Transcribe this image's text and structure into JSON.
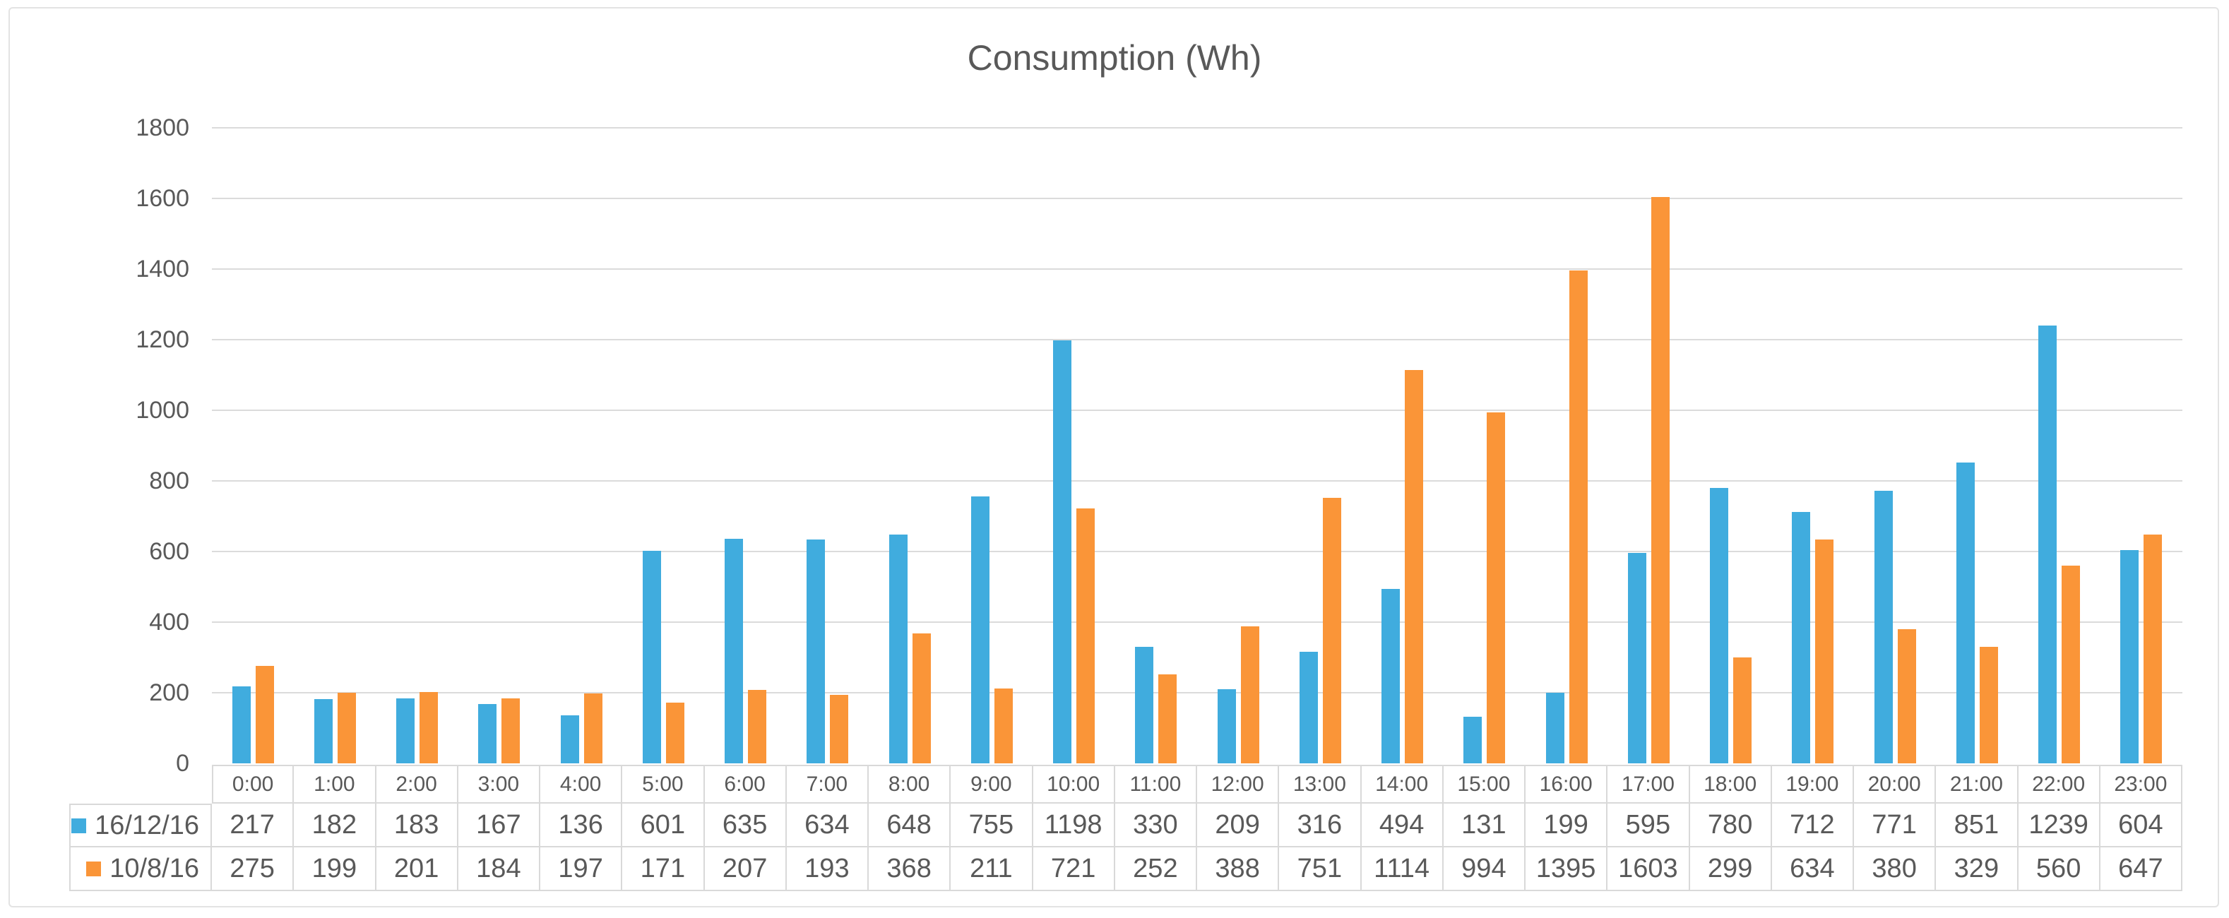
{
  "chart_data": {
    "type": "bar",
    "title": "Consumption (Wh)",
    "categories": [
      "0:00",
      "1:00",
      "2:00",
      "3:00",
      "4:00",
      "5:00",
      "6:00",
      "7:00",
      "8:00",
      "9:00",
      "10:00",
      "11:00",
      "12:00",
      "13:00",
      "14:00",
      "15:00",
      "16:00",
      "17:00",
      "18:00",
      "19:00",
      "20:00",
      "21:00",
      "22:00",
      "23:00"
    ],
    "series": [
      {
        "name": "16/12/16",
        "color": "#40ACDE",
        "values": [
          217,
          182,
          183,
          167,
          136,
          601,
          635,
          634,
          648,
          755,
          1198,
          330,
          209,
          316,
          494,
          131,
          199,
          595,
          780,
          712,
          771,
          851,
          1239,
          604
        ]
      },
      {
        "name": "10/8/16",
        "color": "#FA9538",
        "values": [
          275,
          199,
          201,
          184,
          197,
          171,
          207,
          193,
          368,
          211,
          721,
          252,
          388,
          751,
          1114,
          994,
          1395,
          1603,
          299,
          634,
          380,
          329,
          560,
          647
        ]
      }
    ],
    "xlabel": "",
    "ylabel": "",
    "ylim": [
      0,
      1800
    ],
    "ytick_step": 200,
    "ytick_labels": [
      "0",
      "200",
      "400",
      "600",
      "800",
      "1000",
      "1200",
      "1400",
      "1600",
      "1800"
    ],
    "grid": "horizontal",
    "legend_position": "data-table-left-column"
  },
  "colors": {
    "text": "#595959",
    "gridline": "#dbdbdb",
    "table_border": "#d9d9d9",
    "frame_border": "#e3e3e3",
    "background": "#ffffff"
  }
}
